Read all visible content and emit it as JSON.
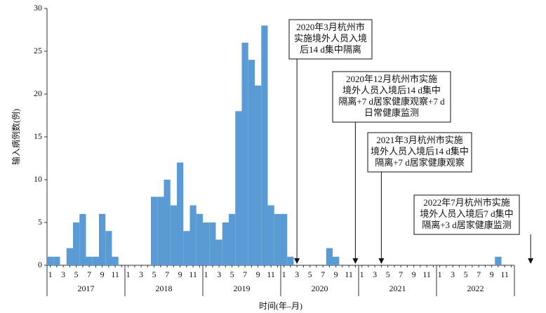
{
  "chart_data": {
    "type": "bar",
    "color": "#5b9bd5",
    "y_label": "输入病例数(例)",
    "x_label": "时间(年–月)",
    "ylim": [
      0,
      30
    ],
    "yticks": [
      0,
      5,
      10,
      15,
      20,
      25,
      30
    ],
    "groups": [
      "2017",
      "2018",
      "2019",
      "2020",
      "2021",
      "2022"
    ],
    "categories": [
      "1",
      null,
      "3",
      null,
      "5",
      null,
      "7",
      null,
      "9",
      null,
      "11",
      null,
      "1",
      null,
      "3",
      null,
      "5",
      null,
      "7",
      null,
      "9",
      null,
      "11",
      null,
      "1",
      null,
      "3",
      null,
      "5",
      null,
      "7",
      null,
      "9",
      null,
      "11",
      null,
      "1",
      null,
      "3",
      null,
      "5",
      null,
      "7",
      null,
      "9",
      null,
      "11",
      null,
      "1",
      null,
      "3",
      null,
      "5",
      null,
      "7",
      null,
      "9",
      null,
      "11",
      null,
      "1",
      null,
      "3",
      null,
      "5",
      null,
      "7",
      null,
      "9",
      null,
      "11",
      null
    ],
    "values": [
      1,
      1,
      0,
      2,
      5,
      6,
      1,
      1,
      6,
      4,
      1,
      0,
      0,
      0,
      0,
      0,
      8,
      8,
      10,
      7,
      12,
      4,
      7,
      6,
      5,
      5,
      3,
      5,
      6,
      18,
      26,
      24,
      21,
      28,
      7,
      6,
      6,
      1,
      0,
      0,
      0,
      0,
      0,
      2,
      1,
      0,
      0,
      0,
      0,
      0,
      0,
      0,
      0,
      0,
      0,
      0,
      0,
      0,
      0,
      0,
      0,
      0,
      0,
      0,
      0,
      0,
      0,
      0,
      0,
      1,
      0,
      0
    ],
    "annotations": [
      {
        "lines": [
          "2020年3月杭州市",
          "实施境外人员入境",
          "后14 d集中隔离"
        ]
      },
      {
        "lines": [
          "2020年12月杭州市实施",
          "境外人员入境后14 d集中",
          "隔离+7 d居家健康观察+7 d",
          "日常健康监测"
        ]
      },
      {
        "lines": [
          "2021年3月杭州市实施",
          "境外人员入境后14 d集中",
          "隔离+7 d居家健康观察"
        ]
      },
      {
        "lines": [
          "2022年7月杭州市实施",
          "境外人员入境后7 d集中",
          "隔离+3 d居家健康监测"
        ]
      }
    ]
  }
}
